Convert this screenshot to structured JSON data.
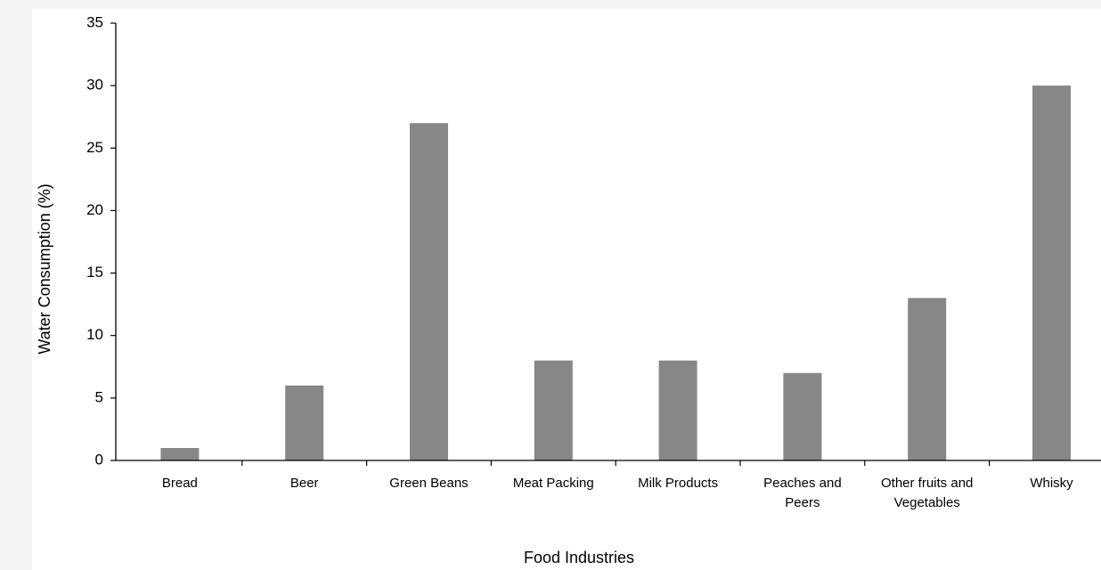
{
  "chart_data": {
    "type": "bar",
    "title": "",
    "xlabel": "Food Industries",
    "ylabel": "Water Consumption (%)",
    "ylim": [
      0,
      35
    ],
    "yticks": [
      0,
      5,
      10,
      15,
      20,
      25,
      30,
      35
    ],
    "grid": false,
    "legend": "none",
    "bar_color": "#878787",
    "categories": [
      [
        "Bread"
      ],
      [
        "Beer"
      ],
      [
        "Green Beans"
      ],
      [
        "Meat Packing"
      ],
      [
        "Milk Products"
      ],
      [
        "Peaches and",
        "Peers"
      ],
      [
        "Other fruits and",
        "Vegetables"
      ],
      [
        "Whisky"
      ]
    ],
    "values": [
      1,
      6,
      27,
      8,
      8,
      7,
      13,
      30
    ]
  }
}
